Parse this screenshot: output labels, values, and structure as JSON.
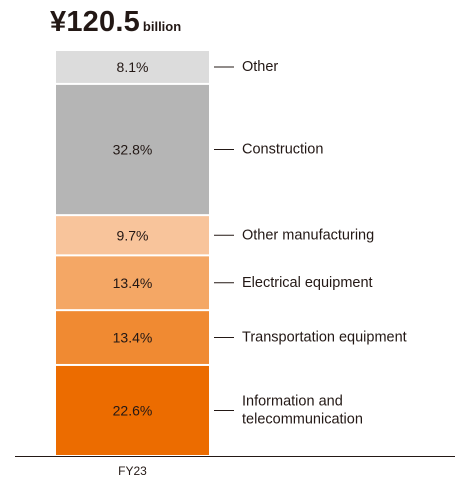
{
  "header": {
    "total": "¥120.5",
    "unit": "billion"
  },
  "chart_data": {
    "type": "bar",
    "stacked": true,
    "categories": [
      "FY23"
    ],
    "series": [
      {
        "name": "Information and telecommunication",
        "label_lines": [
          "Information and",
          "telecommunication"
        ],
        "value": 22.6,
        "label": "22.6%",
        "color": "#ec6c00"
      },
      {
        "name": "Transportation equipment",
        "label_lines": [
          "Transportation equipment"
        ],
        "value": 13.4,
        "label": "13.4%",
        "color": "#f08a32"
      },
      {
        "name": "Electrical equipment",
        "label_lines": [
          "Electrical equipment"
        ],
        "value": 13.4,
        "label": "13.4%",
        "color": "#f4a765"
      },
      {
        "name": "Other manufacturing",
        "label_lines": [
          "Other manufacturing"
        ],
        "value": 9.7,
        "label": "9.7%",
        "color": "#f8c49b"
      },
      {
        "name": "Construction",
        "label_lines": [
          "Construction"
        ],
        "value": 32.8,
        "label": "32.8%",
        "color": "#b5b5b5"
      },
      {
        "name": "Other",
        "label_lines": [
          "Other"
        ],
        "value": 8.1,
        "label": "8.1%",
        "color": "#dcdcdc"
      }
    ],
    "legend": "right"
  }
}
